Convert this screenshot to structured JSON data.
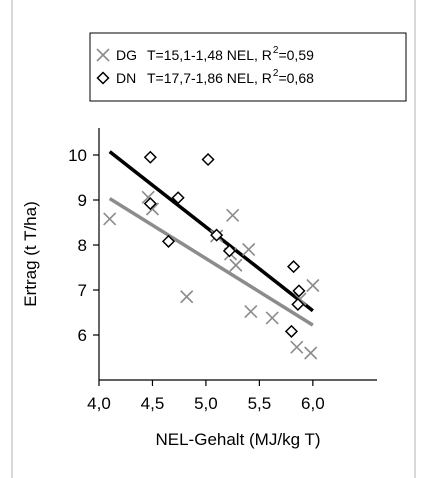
{
  "chart_data": {
    "type": "scatter",
    "xlabel": "NEL-Gehalt (MJ/kg T)",
    "ylabel": "Ertrag (t T/ha)",
    "xlim": [
      4.0,
      6.6
    ],
    "ylim": [
      5.0,
      10.6
    ],
    "x_ticks": [
      "4,0",
      "4,5",
      "5,0",
      "5,5",
      "6,0"
    ],
    "x_tick_values": [
      4.0,
      4.5,
      5.0,
      5.5,
      6.0
    ],
    "y_ticks": [
      "6",
      "7",
      "8",
      "9",
      "10"
    ],
    "y_tick_values": [
      6,
      7,
      8,
      9,
      10
    ],
    "grid": false,
    "legend_position": "top",
    "series": [
      {
        "name": "DG",
        "marker": "x",
        "color": "#8c8c8c",
        "legend_equation": "T=15,1-1,48 NEL, R",
        "legend_r2": "=0,59",
        "regression": {
          "intercept": 15.1,
          "slope": -1.48,
          "x_range": [
            4.1,
            6.0
          ]
        },
        "points": [
          {
            "x": 4.1,
            "y": 8.58
          },
          {
            "x": 4.46,
            "y": 9.06
          },
          {
            "x": 4.5,
            "y": 8.8
          },
          {
            "x": 4.82,
            "y": 6.85
          },
          {
            "x": 5.1,
            "y": 8.2
          },
          {
            "x": 5.23,
            "y": 7.8
          },
          {
            "x": 5.25,
            "y": 8.66
          },
          {
            "x": 5.28,
            "y": 7.55
          },
          {
            "x": 5.4,
            "y": 7.9
          },
          {
            "x": 5.42,
            "y": 6.52
          },
          {
            "x": 5.62,
            "y": 6.38
          },
          {
            "x": 5.85,
            "y": 5.73
          },
          {
            "x": 5.88,
            "y": 6.8
          },
          {
            "x": 6.0,
            "y": 7.1
          },
          {
            "x": 5.98,
            "y": 5.6
          }
        ]
      },
      {
        "name": "DN",
        "marker": "diamond",
        "color": "#000000",
        "legend_equation": "T=17,7-1,86 NEL, R",
        "legend_r2": "=0,68",
        "regression": {
          "intercept": 17.7,
          "slope": -1.86,
          "x_range": [
            4.1,
            6.0
          ]
        },
        "points": [
          {
            "x": 4.48,
            "y": 9.95
          },
          {
            "x": 4.48,
            "y": 8.92
          },
          {
            "x": 4.65,
            "y": 8.08
          },
          {
            "x": 4.74,
            "y": 9.05
          },
          {
            "x": 5.02,
            "y": 9.9
          },
          {
            "x": 5.1,
            "y": 8.22
          },
          {
            "x": 5.22,
            "y": 7.87
          },
          {
            "x": 5.8,
            "y": 6.08
          },
          {
            "x": 5.82,
            "y": 7.52
          },
          {
            "x": 5.86,
            "y": 6.68
          },
          {
            "x": 5.87,
            "y": 6.98
          }
        ]
      }
    ]
  }
}
